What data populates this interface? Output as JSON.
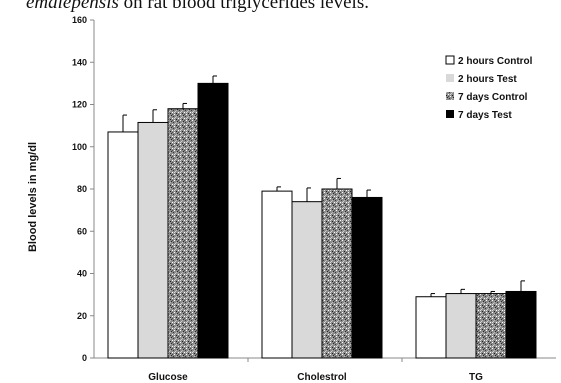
{
  "caption": {
    "italic_part": "emalepensis",
    "rest": " on rat blood triglycerides levels."
  },
  "chart_data": {
    "type": "bar",
    "title": "",
    "xlabel": "",
    "ylabel": "Blood levels in mg/dl",
    "ylim": [
      0,
      160
    ],
    "yticks": [
      0,
      20,
      40,
      60,
      80,
      100,
      120,
      140,
      160
    ],
    "categories": [
      "Glucose",
      "Cholestrol",
      "TG"
    ],
    "series": [
      {
        "name": "2 hours  Control",
        "values": [
          107,
          79,
          29
        ],
        "errors": [
          8,
          2,
          1.5
        ],
        "color": "#ffffff",
        "pattern": "none"
      },
      {
        "name": "2 hours  Test",
        "values": [
          111.5,
          74,
          30.5
        ],
        "errors": [
          6,
          6.5,
          2
        ],
        "color": "#d9d9d9",
        "pattern": "none"
      },
      {
        "name": "7 days Control",
        "values": [
          118,
          80,
          30.5
        ],
        "errors": [
          2.5,
          5,
          1
        ],
        "color": "#8c8c8c",
        "pattern": "speckle"
      },
      {
        "name": "7 days Test",
        "values": [
          130,
          76,
          31.5
        ],
        "errors": [
          3.5,
          3.5,
          5
        ],
        "color": "#000000",
        "pattern": "none"
      }
    ],
    "legend": "top-right",
    "grid": false
  }
}
